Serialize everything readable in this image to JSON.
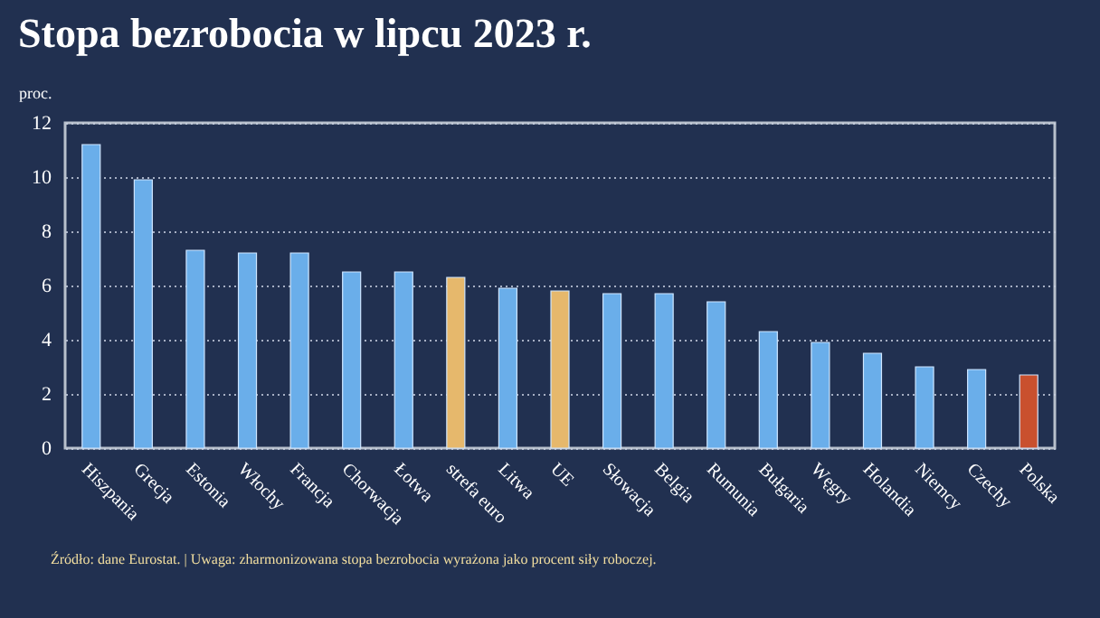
{
  "chart_data": {
    "type": "bar",
    "title": "Stopa bezrobocia w lipcu 2023 r.",
    "ylabel": "proc.",
    "categories": [
      "Hiszpania",
      "Grecja",
      "Estonia",
      "Włochy",
      "Francja",
      "Chorwacja",
      "Łotwa",
      "strefa euro",
      "Litwa",
      "UE",
      "Słowacja",
      "Belgia",
      "Rumunia",
      "Bułgaria",
      "Węgry",
      "Holandia",
      "Niemcy",
      "Czechy",
      "Polska"
    ],
    "values": [
      11.2,
      9.9,
      7.3,
      7.2,
      7.2,
      6.5,
      6.5,
      6.3,
      5.9,
      5.8,
      5.7,
      5.7,
      5.4,
      4.3,
      3.9,
      3.5,
      3.0,
      2.9,
      2.7
    ],
    "colors": [
      "#6aaeea",
      "#6aaeea",
      "#6aaeea",
      "#6aaeea",
      "#6aaeea",
      "#6aaeea",
      "#6aaeea",
      "#e6b86c",
      "#6aaeea",
      "#e6b86c",
      "#6aaeea",
      "#6aaeea",
      "#6aaeea",
      "#6aaeea",
      "#6aaeea",
      "#6aaeea",
      "#6aaeea",
      "#6aaeea",
      "#c9502e"
    ],
    "ylim": [
      0,
      12
    ],
    "yticks": [
      0,
      2,
      4,
      6,
      8,
      10,
      12
    ],
    "grid": "y",
    "annotations": [
      "Źródło: dane Eurostat.  |  Uwaga: zharmonizowana stopa bezrobocia wyrażona jako procent siły roboczej."
    ]
  }
}
